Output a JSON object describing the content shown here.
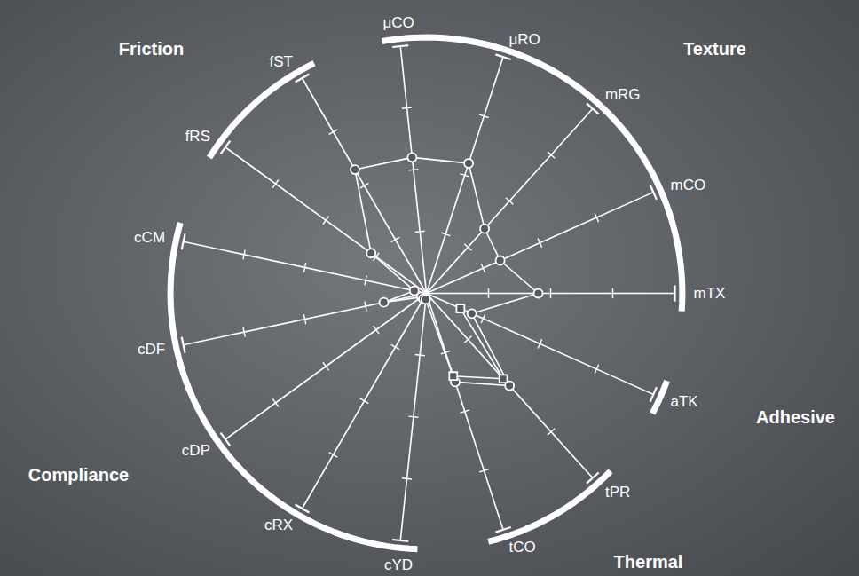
{
  "chart_data": {
    "type": "radar",
    "axes": [
      "mTX",
      "mCO",
      "mRG",
      "μRO",
      "μCO",
      "fST",
      "fRS",
      "cCM",
      "cDF",
      "cDP",
      "cRX",
      "cYD",
      "tCO",
      "tPR",
      "aTK"
    ],
    "groups": [
      {
        "name": "Texture",
        "axes": [
          "mTX",
          "mCO",
          "mRG",
          "μRO",
          "μCO"
        ]
      },
      {
        "name": "Friction",
        "axes": [
          "fST",
          "fRS"
        ]
      },
      {
        "name": "Compliance",
        "axes": [
          "cCM",
          "cDF",
          "cDP",
          "cRX",
          "cYD"
        ]
      },
      {
        "name": "Thermal",
        "axes": [
          "tCO",
          "tPR"
        ]
      },
      {
        "name": "Adhesive",
        "axes": [
          "aTK"
        ]
      }
    ],
    "rlim": [
      0,
      4
    ],
    "rticks": [
      1,
      2,
      3,
      4
    ],
    "tick_labels": false,
    "series": [
      {
        "color": "#ffffff",
        "marker": "circle",
        "values": [
          1.8,
          1.3,
          1.4,
          2.2,
          2.2,
          2.3,
          1.1,
          0.2,
          0.7,
          0.1,
          0.1,
          0.1,
          1.5,
          2.0,
          0.8
        ]
      },
      {
        "color": "#ffffff",
        "marker": "square",
        "values": [
          null,
          null,
          null,
          null,
          null,
          null,
          null,
          null,
          null,
          null,
          null,
          null,
          1.4,
          1.85,
          0.6
        ]
      }
    ]
  }
}
